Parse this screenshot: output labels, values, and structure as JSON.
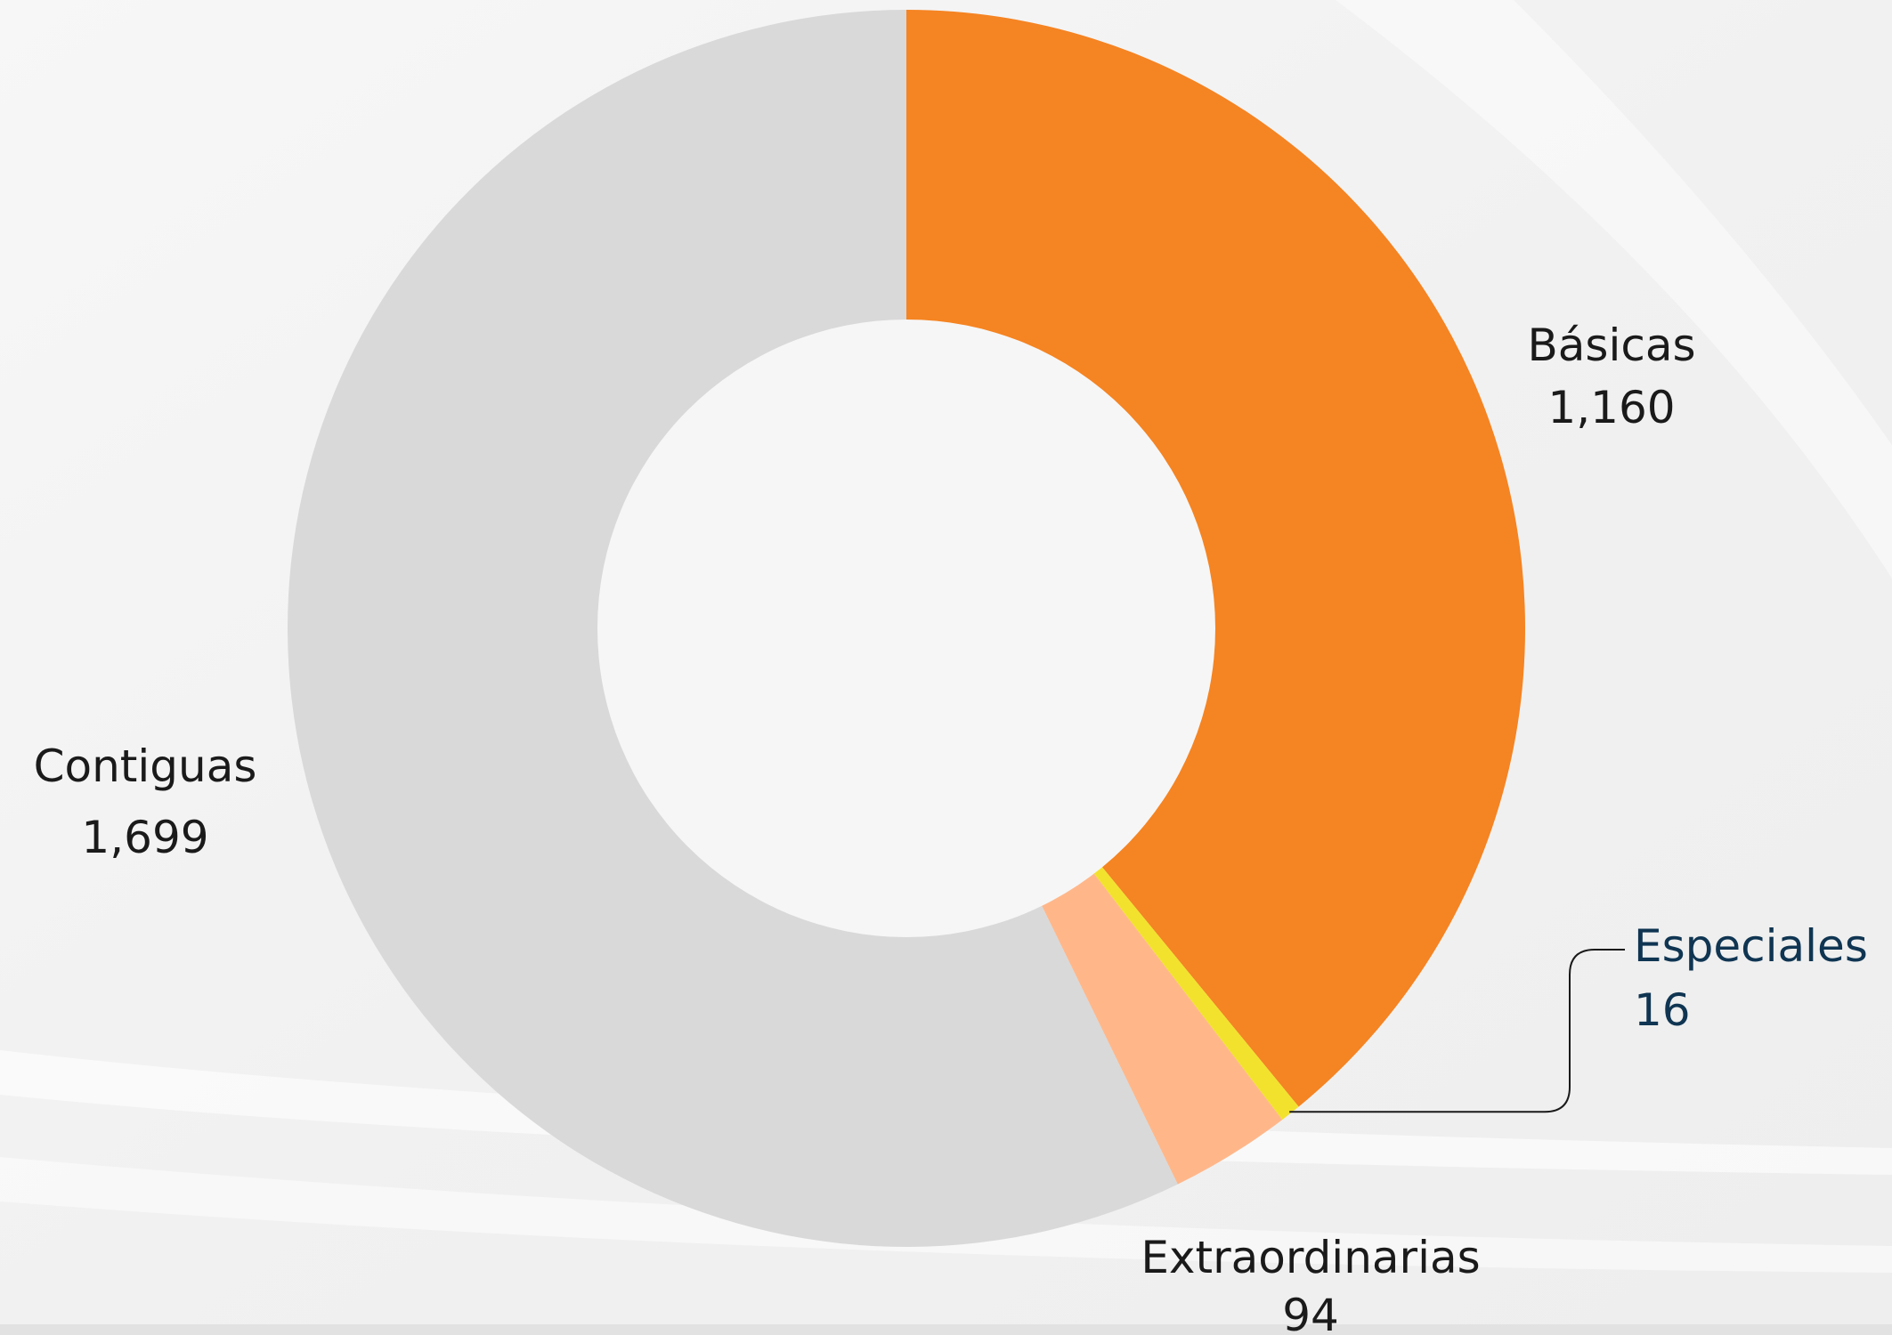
{
  "chart_data": {
    "type": "pie",
    "donut": true,
    "start_angle_deg": 0,
    "direction": "clockwise",
    "slices": [
      {
        "label": "Básicas",
        "value": 1160,
        "value_label": "1,160",
        "color": "#F58422",
        "label_color": "#1a1a1a"
      },
      {
        "label": "Especiales",
        "value": 16,
        "value_label": "16",
        "color": "#F2E22E",
        "label_color": "#0f3552"
      },
      {
        "label": "Extraordinarias",
        "value": 94,
        "value_label": "94",
        "color": "#FFB78A",
        "label_color": "#1a1a1a"
      },
      {
        "label": "Contiguas",
        "value": 1699,
        "value_label": "1,699",
        "color": "#D9D9D9",
        "label_color": "#1a1a1a"
      }
    ]
  }
}
